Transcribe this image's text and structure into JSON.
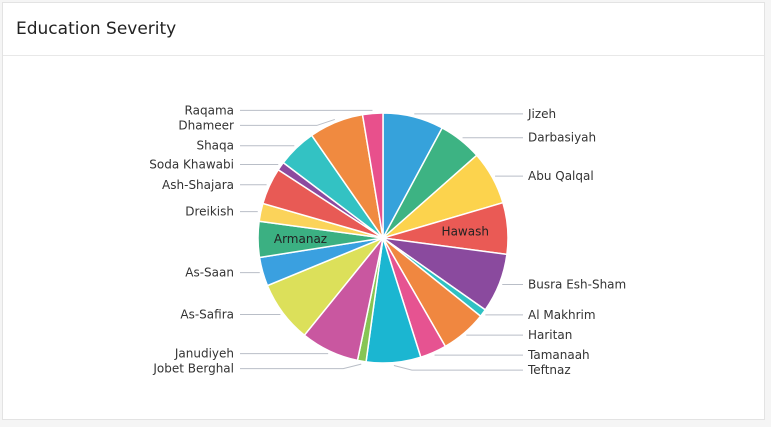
{
  "card": {
    "title": "Education Severity"
  },
  "chart_data": {
    "type": "pie",
    "title": "Education Severity",
    "slices": [
      {
        "label": "Jizeh",
        "value": 7.8,
        "color": "#36a2db",
        "inside": false,
        "side": "right"
      },
      {
        "label": "Darbasiyah",
        "value": 5.6,
        "color": "#3db383",
        "inside": false,
        "side": "right"
      },
      {
        "label": "Abu Qalqal",
        "value": 6.9,
        "color": "#fcd34d",
        "inside": false,
        "side": "right"
      },
      {
        "label": "Hawash",
        "value": 6.6,
        "color": "#ea5a55",
        "inside": true,
        "side": "right"
      },
      {
        "label": "Busra Esh-Sham",
        "value": 7.6,
        "color": "#8a4a9e",
        "inside": false,
        "side": "right"
      },
      {
        "label": "Al Makhrim",
        "value": 1.0,
        "color": "#2fc1c3",
        "inside": false,
        "side": "right"
      },
      {
        "label": "Haritan",
        "value": 5.9,
        "color": "#f08740",
        "inside": false,
        "side": "right"
      },
      {
        "label": "Tamanaah",
        "value": 3.4,
        "color": "#e65391",
        "inside": false,
        "side": "right"
      },
      {
        "label": "Teftnaz",
        "value": 7.0,
        "color": "#1bb6d1",
        "inside": false,
        "side": "right"
      },
      {
        "label": "Jobet Berghal",
        "value": 1.1,
        "color": "#86c554",
        "inside": false,
        "side": "left"
      },
      {
        "label": "Janudiyeh",
        "value": 7.5,
        "color": "#c957a0",
        "inside": false,
        "side": "left"
      },
      {
        "label": "As-Safira",
        "value": 7.9,
        "color": "#dce05a",
        "inside": false,
        "side": "left"
      },
      {
        "label": "As-Saan",
        "value": 3.7,
        "color": "#3aa0e0",
        "inside": false,
        "side": "left"
      },
      {
        "label": "Armanaz",
        "value": 4.6,
        "color": "#3bb082",
        "inside": true,
        "side": "left"
      },
      {
        "label": "Dreikish",
        "value": 2.3,
        "color": "#fbd35a",
        "inside": false,
        "side": "left"
      },
      {
        "label": "Ash-Shajara",
        "value": 4.7,
        "color": "#e85a55",
        "inside": false,
        "side": "left"
      },
      {
        "label": "Soda Khawabi",
        "value": 1.1,
        "color": "#8c4a9f",
        "inside": false,
        "side": "left"
      },
      {
        "label": "Shaqa",
        "value": 5.0,
        "color": "#33c2c3",
        "inside": false,
        "side": "left"
      },
      {
        "label": "Dhameer",
        "value": 7.0,
        "color": "#f08a40",
        "inside": false,
        "side": "left"
      },
      {
        "label": "Raqama",
        "value": 2.6,
        "color": "#e8508c",
        "inside": false,
        "side": "left"
      }
    ],
    "legend": "none"
  }
}
